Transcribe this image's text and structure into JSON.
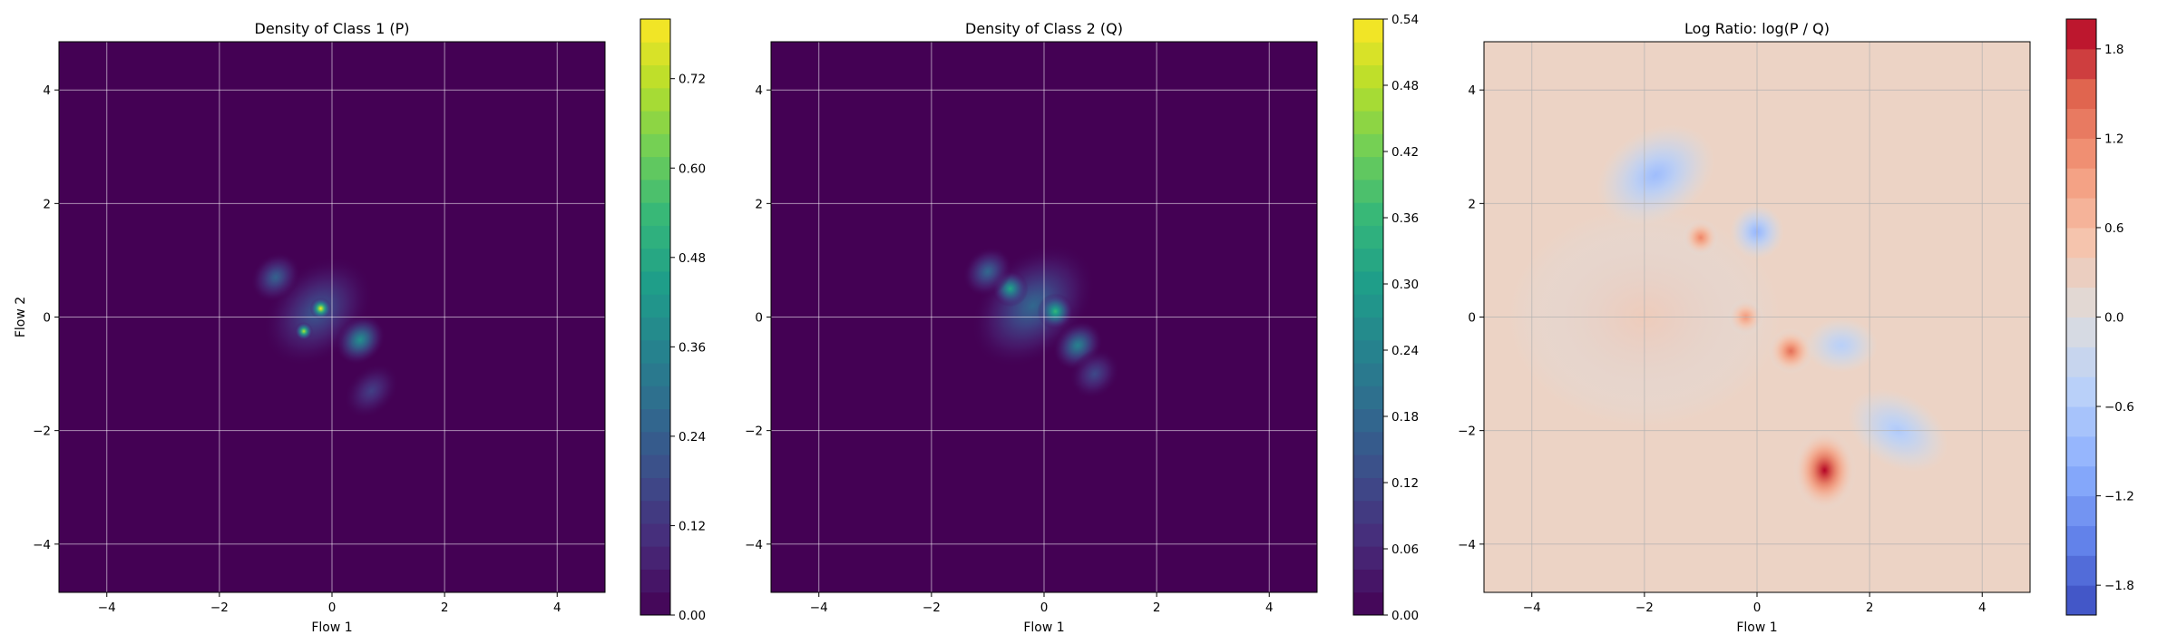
{
  "chart_data": [
    {
      "type": "heatmap",
      "title": "Density of Class 1 (P)",
      "xlabel": "Flow 1",
      "ylabel": "Flow 2",
      "xlim": [
        -4.85,
        4.85
      ],
      "ylim": [
        -4.85,
        4.85
      ],
      "xticks": [
        -4,
        -2,
        0,
        2,
        4
      ],
      "yticks": [
        -4,
        -2,
        0,
        2,
        4
      ],
      "xtick_labels": [
        "−4",
        "−2",
        "0",
        "2",
        "4"
      ],
      "ytick_labels": [
        "−4",
        "−2",
        "0",
        "2",
        "4"
      ],
      "grid": true,
      "colormap": "viridis",
      "colorbar": {
        "min": 0.0,
        "max": 0.8,
        "tick_values": [
          0.0,
          0.12,
          0.24,
          0.36,
          0.48,
          0.6,
          0.72
        ],
        "tick_labels": [
          "0.00",
          "0.12",
          "0.24",
          "0.36",
          "0.48",
          "0.60",
          "0.72"
        ]
      },
      "background_color": "#440154",
      "blobs": [
        {
          "x": -0.25,
          "y": 0.1,
          "sx": 0.7,
          "sy": 0.5,
          "rot": -45,
          "value": 0.22
        },
        {
          "x": -0.2,
          "y": 0.15,
          "sx": 0.12,
          "sy": 0.12,
          "rot": 0,
          "value": 0.8
        },
        {
          "x": -0.5,
          "y": -0.25,
          "sx": 0.1,
          "sy": 0.1,
          "rot": 0,
          "value": 0.72
        },
        {
          "x": 0.5,
          "y": -0.4,
          "sx": 0.3,
          "sy": 0.25,
          "rot": -45,
          "value": 0.4
        },
        {
          "x": -1.0,
          "y": 0.7,
          "sx": 0.3,
          "sy": 0.25,
          "rot": -45,
          "value": 0.25
        },
        {
          "x": 0.7,
          "y": -1.3,
          "sx": 0.35,
          "sy": 0.25,
          "rot": -45,
          "value": 0.15
        }
      ]
    },
    {
      "type": "heatmap",
      "title": "Density of Class 2 (Q)",
      "xlabel": "Flow 1",
      "ylabel": "",
      "xlim": [
        -4.85,
        4.85
      ],
      "ylim": [
        -4.85,
        4.85
      ],
      "xticks": [
        -4,
        -2,
        0,
        2,
        4
      ],
      "yticks": [
        -4,
        -2,
        0,
        2,
        4
      ],
      "xtick_labels": [
        "−4",
        "−2",
        "0",
        "2",
        "4"
      ],
      "ytick_labels": [
        "−4",
        "−2",
        "0",
        "2",
        "4"
      ],
      "grid": true,
      "colormap": "viridis",
      "colorbar": {
        "min": 0.0,
        "max": 0.54,
        "tick_values": [
          0.0,
          0.06,
          0.12,
          0.18,
          0.24,
          0.3,
          0.36,
          0.42,
          0.48,
          0.54
        ],
        "tick_labels": [
          "0.00",
          "0.06",
          "0.12",
          "0.18",
          "0.24",
          "0.30",
          "0.36",
          "0.42",
          "0.48",
          "0.54"
        ]
      },
      "background_color": "#440154",
      "blobs": [
        {
          "x": -0.2,
          "y": 0.2,
          "sx": 0.8,
          "sy": 0.55,
          "rot": -45,
          "value": 0.18
        },
        {
          "x": 0.2,
          "y": 0.1,
          "sx": 0.2,
          "sy": 0.2,
          "rot": 0,
          "value": 0.36
        },
        {
          "x": -0.6,
          "y": 0.5,
          "sx": 0.2,
          "sy": 0.2,
          "rot": 0,
          "value": 0.32
        },
        {
          "x": 0.6,
          "y": -0.5,
          "sx": 0.3,
          "sy": 0.25,
          "rot": -45,
          "value": 0.24
        },
        {
          "x": -1.0,
          "y": 0.8,
          "sx": 0.3,
          "sy": 0.25,
          "rot": -45,
          "value": 0.18
        },
        {
          "x": 0.9,
          "y": -1.0,
          "sx": 0.3,
          "sy": 0.25,
          "rot": -45,
          "value": 0.12
        }
      ]
    },
    {
      "type": "heatmap",
      "title": "Log Ratio: log(P / Q)",
      "xlabel": "Flow 1",
      "ylabel": "",
      "xlim": [
        -4.85,
        4.85
      ],
      "ylim": [
        -4.85,
        4.85
      ],
      "xticks": [
        -4,
        -2,
        0,
        2,
        4
      ],
      "yticks": [
        -4,
        -2,
        0,
        2,
        4
      ],
      "xtick_labels": [
        "−4",
        "−2",
        "0",
        "2",
        "4"
      ],
      "ytick_labels": [
        "−4",
        "−2",
        "0",
        "2",
        "4"
      ],
      "grid": true,
      "colormap": "coolwarm",
      "colorbar": {
        "min": -2.0,
        "max": 2.0,
        "tick_values": [
          -1.8,
          -1.2,
          -0.6,
          0.0,
          0.6,
          1.2,
          1.8
        ],
        "tick_labels": [
          "−1.8",
          "−1.2",
          "−0.6",
          "0.0",
          "0.6",
          "1.2",
          "1.8"
        ]
      },
      "background_color": "#ecd3c5",
      "blobs": [
        {
          "x": -2.0,
          "y": 0.0,
          "sx": 1.5,
          "sy": 1.2,
          "rot": 0,
          "value": 0.35
        },
        {
          "x": -1.8,
          "y": 2.5,
          "sx": 0.7,
          "sy": 0.5,
          "rot": -30,
          "value": -0.8
        },
        {
          "x": -1.0,
          "y": 1.4,
          "sx": 0.2,
          "sy": 0.2,
          "rot": 0,
          "value": 1.2
        },
        {
          "x": -0.2,
          "y": 0.0,
          "sx": 0.2,
          "sy": 0.2,
          "rot": 0,
          "value": 1.0
        },
        {
          "x": 0.6,
          "y": -0.6,
          "sx": 0.25,
          "sy": 0.25,
          "rot": 0,
          "value": 1.4
        },
        {
          "x": 1.2,
          "y": -2.7,
          "sx": 0.35,
          "sy": 0.45,
          "rot": 0,
          "value": 2.0
        },
        {
          "x": 2.5,
          "y": -2.0,
          "sx": 0.6,
          "sy": 0.4,
          "rot": 30,
          "value": -0.6
        },
        {
          "x": 0.0,
          "y": 1.5,
          "sx": 0.3,
          "sy": 0.3,
          "rot": 0,
          "value": -0.9
        },
        {
          "x": 1.5,
          "y": -0.5,
          "sx": 0.4,
          "sy": 0.3,
          "rot": 0,
          "value": -0.5
        }
      ]
    }
  ]
}
